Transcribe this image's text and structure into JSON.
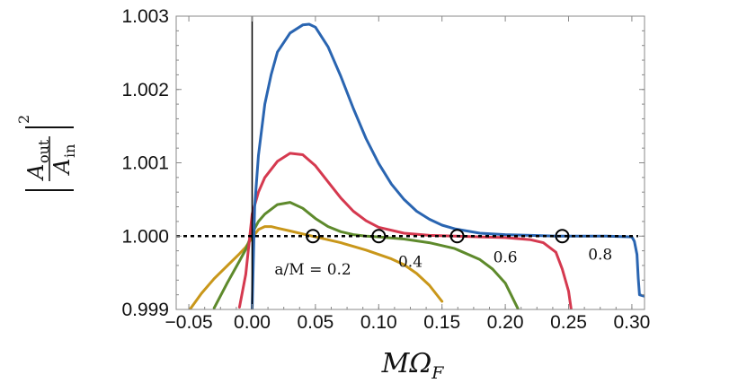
{
  "chart_data": {
    "type": "line",
    "title": "",
    "xlabel_parts": {
      "main": "MΩ",
      "sub": "F"
    },
    "ylabel_parts": {
      "num_main": "A",
      "num_sub": "out",
      "den_main": "A",
      "den_sub": "in",
      "power": "2"
    },
    "xlim": [
      -0.06,
      0.31
    ],
    "ylim": [
      0.999,
      1.003
    ],
    "x_ticks": [
      -0.05,
      0.0,
      0.05,
      0.1,
      0.15,
      0.2,
      0.25,
      0.3
    ],
    "x_tick_labels": [
      "−0.05",
      "0.00",
      "0.05",
      "0.10",
      "0.15",
      "0.20",
      "0.25",
      "0.30"
    ],
    "y_ticks": [
      0.999,
      1.0,
      1.001,
      1.002,
      1.003
    ],
    "y_tick_labels": [
      "0.999",
      "1.000",
      "1.001",
      "1.002",
      "1.003"
    ],
    "reference_line": {
      "y": 1.0,
      "style": "dotted",
      "color": "#000000"
    },
    "series": [
      {
        "name": "a/M = 0.2",
        "color": "#c9971a",
        "x": [
          -0.05,
          -0.04,
          -0.03,
          -0.02,
          -0.01,
          -0.005,
          0.0,
          0.005,
          0.01,
          0.015,
          0.02,
          0.03,
          0.04,
          0.05,
          0.06,
          0.07,
          0.08,
          0.09,
          0.1,
          0.11,
          0.12,
          0.13,
          0.14,
          0.15
        ],
        "y": [
          0.99898,
          0.99922,
          0.99942,
          0.99959,
          0.99976,
          0.99985,
          0.99998,
          1.00009,
          1.00013,
          1.00013,
          1.00011,
          1.00007,
          1.00003,
          0.99999,
          0.99995,
          0.99991,
          0.99986,
          0.99981,
          0.99975,
          0.99969,
          0.99961,
          0.99949,
          0.99933,
          0.99911
        ]
      },
      {
        "name": "0.4",
        "color": "#5e8a2c",
        "x": [
          -0.03,
          -0.02,
          -0.01,
          -0.005,
          0.0,
          0.005,
          0.01,
          0.02,
          0.03,
          0.04,
          0.05,
          0.06,
          0.07,
          0.08,
          0.09,
          0.1,
          0.12,
          0.14,
          0.16,
          0.18,
          0.19,
          0.2,
          0.21
        ],
        "y": [
          0.99902,
          0.99935,
          0.99966,
          0.99982,
          1.00004,
          1.0002,
          1.0003,
          1.00043,
          1.00046,
          1.00038,
          1.00024,
          1.00013,
          1.00006,
          1.00002,
          1.0,
          0.99999,
          0.99996,
          0.99991,
          0.99983,
          0.99968,
          0.99955,
          0.99936,
          0.99901
        ]
      },
      {
        "name": "0.6",
        "color": "#d5394f",
        "x": [
          -0.01,
          -0.005,
          0.0,
          0.005,
          0.01,
          0.02,
          0.03,
          0.04,
          0.05,
          0.06,
          0.07,
          0.08,
          0.09,
          0.1,
          0.12,
          0.14,
          0.16,
          0.18,
          0.2,
          0.22,
          0.23,
          0.24,
          0.245,
          0.25,
          0.252
        ],
        "y": [
          0.99903,
          0.99948,
          1.0003,
          1.0006,
          1.0008,
          1.00102,
          1.00113,
          1.00111,
          1.00096,
          1.00074,
          1.00052,
          1.00034,
          1.00021,
          1.00012,
          1.00004,
          1.00001,
          1.0,
          0.99999,
          0.99998,
          0.99995,
          0.99991,
          0.99978,
          0.99955,
          0.99925,
          0.99901
        ]
      },
      {
        "name": "0.8",
        "color": "#2a65b1",
        "x": [
          0.0,
          0.002,
          0.005,
          0.01,
          0.015,
          0.02,
          0.03,
          0.04,
          0.045,
          0.05,
          0.06,
          0.07,
          0.08,
          0.09,
          0.1,
          0.11,
          0.12,
          0.13,
          0.14,
          0.15,
          0.16,
          0.18,
          0.2,
          0.22,
          0.24,
          0.26,
          0.28,
          0.3,
          0.302,
          0.304,
          0.305,
          0.306,
          0.31
        ],
        "y": [
          0.999,
          1.0004,
          1.0011,
          1.0018,
          1.0022,
          1.00251,
          1.00277,
          1.00288,
          1.00289,
          1.00285,
          1.00258,
          1.00218,
          1.00174,
          1.00133,
          1.00099,
          1.00071,
          1.0005,
          1.00034,
          1.00023,
          1.00015,
          1.0001,
          1.00004,
          1.00002,
          1.00001,
          1.0,
          1.0,
          1.0,
          0.99999,
          0.99993,
          0.99975,
          0.99943,
          0.9992,
          0.99918
        ]
      }
    ],
    "markers": [
      {
        "x": 0.048,
        "y": 1.0,
        "shape": "open-circle"
      },
      {
        "x": 0.1,
        "y": 1.0,
        "shape": "open-circle"
      },
      {
        "x": 0.162,
        "y": 1.0,
        "shape": "open-circle"
      },
      {
        "x": 0.245,
        "y": 1.0,
        "shape": "open-circle"
      }
    ],
    "vertical_line": {
      "x": 0.0,
      "color": "#000000"
    },
    "annotations": [
      {
        "text": "a/M = 0.2",
        "x": 0.048,
        "y": 0.99948
      },
      {
        "text": "0.4",
        "x": 0.125,
        "y": 0.99958
      },
      {
        "text": "0.6",
        "x": 0.2,
        "y": 0.99964
      },
      {
        "text": "0.8",
        "x": 0.275,
        "y": 0.99968
      }
    ]
  }
}
